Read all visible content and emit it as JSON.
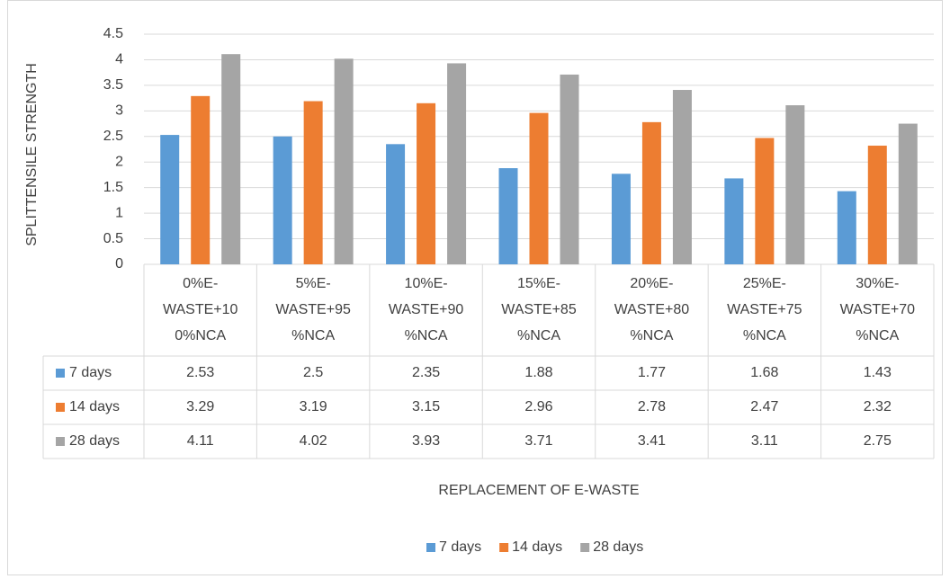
{
  "chart_data": {
    "type": "bar",
    "y_axis_label": "SPLITTENSILE STRENGTH",
    "x_axis_label": "REPLACEMENT OF E-WASTE",
    "categories": [
      "0%E-WASTE+100%NCA",
      "5%E-WASTE+95%NCA",
      "10%E-WASTE+90%NCA",
      "15%E-WASTE+85%NCA",
      "20%E-WASTE+80%NCA",
      "25%E-WASTE+75%NCA",
      "30%E-WASTE+70%NCA"
    ],
    "series": [
      {
        "name": "7 days",
        "color": "#5b9bd5",
        "values": [
          2.53,
          2.5,
          2.35,
          1.88,
          1.77,
          1.68,
          1.43
        ]
      },
      {
        "name": "14 days",
        "color": "#ed7d31",
        "values": [
          3.29,
          3.19,
          3.15,
          2.96,
          2.78,
          2.47,
          2.32
        ]
      },
      {
        "name": "28 days",
        "color": "#a5a5a5",
        "values": [
          4.11,
          4.02,
          3.93,
          3.71,
          3.41,
          3.11,
          2.75
        ]
      }
    ],
    "ylim": [
      0,
      4.5
    ],
    "yticks": [
      0,
      0.5,
      1,
      1.5,
      2,
      2.5,
      3,
      3.5,
      4,
      4.5
    ],
    "grid": true,
    "legend": "bottom",
    "data_table": true
  }
}
